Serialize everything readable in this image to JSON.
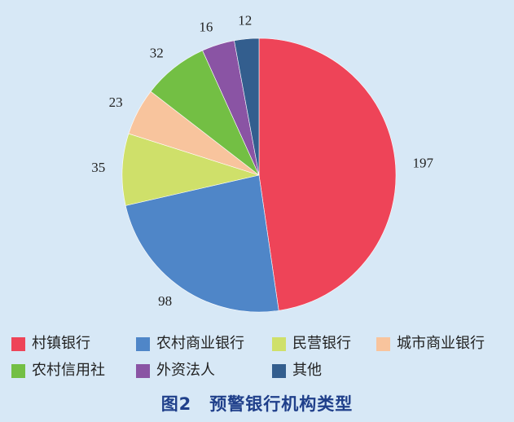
{
  "chart_data": {
    "type": "pie",
    "title": "",
    "slices": [
      {
        "label": "村镇银行",
        "value": 197,
        "color": "#ee4458"
      },
      {
        "label": "农村商业银行",
        "value": 98,
        "color": "#4f86c8"
      },
      {
        "label": "民营银行",
        "value": 35,
        "color": "#cfe06a"
      },
      {
        "label": "城市商业银行",
        "value": 23,
        "color": "#f8c49d"
      },
      {
        "label": "农村信用社",
        "value": 32,
        "color": "#73bf44"
      },
      {
        "label": "外资法人",
        "value": 16,
        "color": "#8a54a4"
      },
      {
        "label": "其他",
        "value": 12,
        "color": "#335e8e"
      }
    ],
    "legend_position": "bottom",
    "direction": "clockwise"
  },
  "caption": "图2　预警银行机构类型"
}
